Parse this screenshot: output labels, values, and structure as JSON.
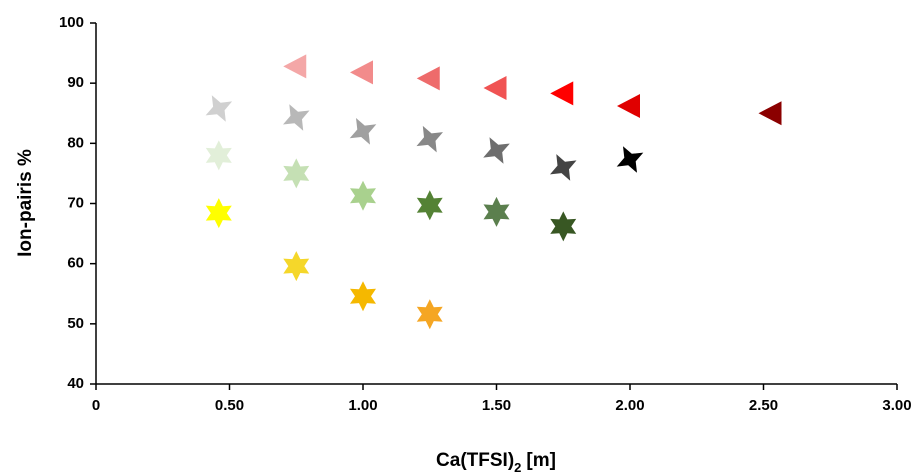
{
  "chart_data": {
    "type": "scatter",
    "x_label": {
      "text": "Ca(TFSI)",
      "subscript": "2",
      "suffix": "[m]"
    },
    "y_label": "Ion-pairis %",
    "xlim": [
      0,
      3
    ],
    "ylim": [
      40,
      100
    ],
    "xticks": [
      0,
      {
        "value": 0.5,
        "label": "0.50"
      },
      {
        "value": 1,
        "label": "1.00"
      },
      {
        "value": 1.5,
        "label": "1.50"
      },
      {
        "value": 2,
        "label": "2.00"
      },
      {
        "value": 2.5,
        "label": "2.50"
      },
      {
        "value": 3,
        "label": "3.00"
      }
    ],
    "yticks": [
      40,
      50,
      60,
      70,
      80,
      90,
      100
    ],
    "series": [
      {
        "marker": "triangle",
        "x": [
          0.75,
          1.0,
          1.25,
          1.5,
          1.75,
          2.0,
          2.53
        ],
        "values": [
          92.8,
          91.8,
          90.8,
          89.2,
          88.3,
          86.2,
          85.0
        ],
        "colors": [
          "#f4a7a7",
          "#f28b8b",
          "#ee6b6b",
          "#f05353",
          "#ff0000",
          "#e00000",
          "#8b0000"
        ]
      },
      {
        "marker": "star4",
        "x": [
          0.46,
          0.75,
          1.0,
          1.25,
          1.5,
          1.75,
          2.0
        ],
        "values": [
          85.8,
          84.3,
          82.0,
          80.7,
          78.8,
          76.0,
          77.3
        ],
        "colors": [
          "#d0d0d0",
          "#b8b8b8",
          "#a0a0a0",
          "#888888",
          "#6e6e6e",
          "#444444",
          "#000000"
        ]
      },
      {
        "marker": "star6",
        "x": [
          0.46,
          0.75,
          1.0,
          1.25,
          1.5,
          1.75
        ],
        "values": [
          78.0,
          75.0,
          71.3,
          69.7,
          68.6,
          66.2
        ],
        "colors": [
          "#e2efd9",
          "#c5e0b4",
          "#a9d18e",
          "#548235",
          "#5b7f4e",
          "#385723"
        ]
      },
      {
        "marker": "star6",
        "x": [
          0.46,
          0.75,
          1.0,
          1.25
        ],
        "values": [
          68.4,
          59.6,
          54.6,
          51.6
        ],
        "colors": [
          "#ffff00",
          "#f5d72a",
          "#f5b800",
          "#f5a623"
        ]
      }
    ]
  }
}
